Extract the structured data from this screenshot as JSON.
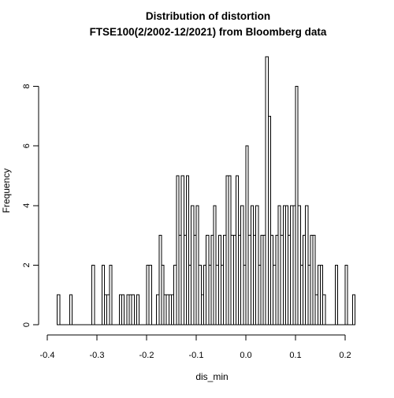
{
  "chart_data": {
    "type": "bar",
    "title": "Distribution of distortion",
    "subtitle": "FTSE100(2/2002-12/2021) from Bloomberg data",
    "xlabel": "dis_min",
    "ylabel": "Frequency",
    "xlim": [
      -0.38,
      0.22
    ],
    "ylim": [
      0,
      9
    ],
    "bin_width": 0.005,
    "x_ticks": [
      -0.4,
      -0.3,
      -0.2,
      -0.1,
      0.0,
      0.1,
      0.2
    ],
    "x_tick_labels": [
      "-0.4",
      "-0.3",
      "-0.2",
      "-0.1",
      "0.0",
      "0.1",
      "0.2"
    ],
    "y_ticks": [
      0,
      2,
      4,
      6,
      8
    ],
    "y_tick_labels": [
      "0",
      "2",
      "4",
      "6",
      "8"
    ],
    "grid": false,
    "colors": {
      "bar_fill": "#ffffff",
      "bar_stroke": "#000000"
    },
    "bin_starts": [
      -0.38,
      -0.375,
      -0.37,
      -0.365,
      -0.36,
      -0.355,
      -0.35,
      -0.345,
      -0.34,
      -0.335,
      -0.33,
      -0.325,
      -0.32,
      -0.315,
      -0.31,
      -0.305,
      -0.3,
      -0.295,
      -0.29,
      -0.285,
      -0.28,
      -0.275,
      -0.27,
      -0.265,
      -0.26,
      -0.255,
      -0.25,
      -0.245,
      -0.24,
      -0.235,
      -0.23,
      -0.225,
      -0.22,
      -0.215,
      -0.21,
      -0.205,
      -0.2,
      -0.195,
      -0.19,
      -0.185,
      -0.18,
      -0.175,
      -0.17,
      -0.165,
      -0.16,
      -0.155,
      -0.15,
      -0.145,
      -0.14,
      -0.135,
      -0.13,
      -0.125,
      -0.12,
      -0.115,
      -0.11,
      -0.105,
      -0.1,
      -0.095,
      -0.09,
      -0.085,
      -0.08,
      -0.075,
      -0.07,
      -0.065,
      -0.06,
      -0.055,
      -0.05,
      -0.045,
      -0.04,
      -0.035,
      -0.03,
      -0.025,
      -0.02,
      -0.015,
      -0.01,
      -0.005,
      0.0,
      0.005,
      0.01,
      0.015,
      0.02,
      0.025,
      0.03,
      0.035,
      0.04,
      0.045,
      0.05,
      0.055,
      0.06,
      0.065,
      0.07,
      0.075,
      0.08,
      0.085,
      0.09,
      0.095,
      0.1,
      0.105,
      0.11,
      0.115,
      0.12,
      0.125,
      0.13,
      0.135,
      0.14,
      0.145,
      0.15,
      0.155,
      0.16,
      0.165,
      0.17,
      0.175,
      0.18,
      0.185,
      0.19,
      0.195,
      0.2,
      0.205,
      0.21,
      0.215
    ],
    "values": [
      1,
      0,
      0,
      0,
      0,
      1,
      0,
      0,
      0,
      0,
      0,
      0,
      0,
      0,
      2,
      0,
      0,
      0,
      2,
      1,
      1,
      2,
      0,
      0,
      0,
      1,
      1,
      0,
      1,
      1,
      1,
      0,
      1,
      0,
      0,
      0,
      2,
      2,
      0,
      0,
      1,
      3,
      2,
      1,
      1,
      1,
      1,
      2,
      5,
      3,
      5,
      3,
      5,
      2,
      4,
      3,
      4,
      2,
      1,
      2,
      3,
      2,
      3,
      4,
      2,
      3,
      2,
      3,
      5,
      5,
      3,
      3,
      5,
      3,
      4,
      2,
      6,
      3,
      4,
      3,
      4,
      2,
      3,
      3,
      9,
      7,
      3,
      2,
      3,
      4,
      3,
      4,
      4,
      3,
      4,
      4,
      8,
      4,
      2,
      3,
      4,
      2,
      3,
      3,
      1,
      2,
      2,
      1,
      0,
      0,
      0,
      0,
      2,
      0,
      0,
      0,
      2,
      0,
      0,
      1
    ]
  }
}
